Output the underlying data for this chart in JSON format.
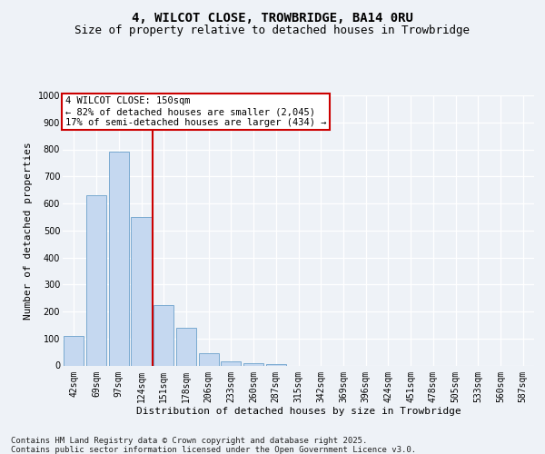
{
  "title_line1": "4, WILCOT CLOSE, TROWBRIDGE, BA14 0RU",
  "title_line2": "Size of property relative to detached houses in Trowbridge",
  "xlabel": "Distribution of detached houses by size in Trowbridge",
  "ylabel": "Number of detached properties",
  "bar_categories": [
    "42sqm",
    "69sqm",
    "97sqm",
    "124sqm",
    "151sqm",
    "178sqm",
    "206sqm",
    "233sqm",
    "260sqm",
    "287sqm",
    "315sqm",
    "342sqm",
    "369sqm",
    "396sqm",
    "424sqm",
    "451sqm",
    "478sqm",
    "505sqm",
    "533sqm",
    "560sqm",
    "587sqm"
  ],
  "bar_values": [
    110,
    630,
    790,
    550,
    225,
    140,
    45,
    15,
    10,
    5,
    0,
    0,
    0,
    0,
    0,
    0,
    0,
    0,
    0,
    0,
    0
  ],
  "bar_color": "#c5d8f0",
  "bar_edge_color": "#7aaad0",
  "vline_color": "#cc0000",
  "ylim": [
    0,
    1000
  ],
  "yticks": [
    0,
    100,
    200,
    300,
    400,
    500,
    600,
    700,
    800,
    900,
    1000
  ],
  "annotation_text": "4 WILCOT CLOSE: 150sqm\n← 82% of detached houses are smaller (2,045)\n17% of semi-detached houses are larger (434) →",
  "annotation_box_color": "#cc0000",
  "annotation_bg": "#ffffff",
  "footnote_line1": "Contains HM Land Registry data © Crown copyright and database right 2025.",
  "footnote_line2": "Contains public sector information licensed under the Open Government Licence v3.0.",
  "bg_color": "#eef2f7",
  "plot_bg_color": "#eef2f7",
  "grid_color": "#ffffff",
  "title_fontsize": 10,
  "subtitle_fontsize": 9,
  "axis_label_fontsize": 8,
  "tick_fontsize": 7,
  "annotation_fontsize": 7.5,
  "footnote_fontsize": 6.5
}
